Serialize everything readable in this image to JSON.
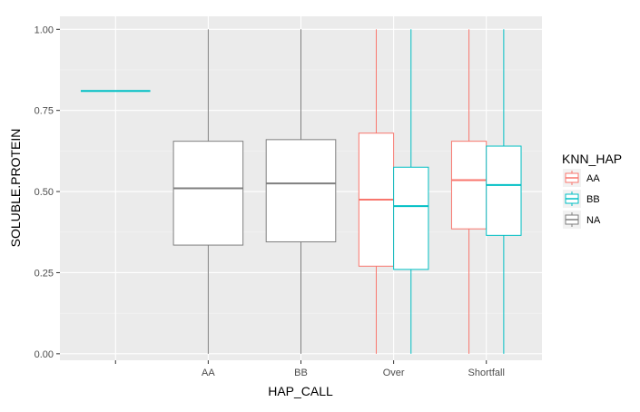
{
  "chart_data": {
    "type": "boxplot",
    "xlabel": "HAP_CALL",
    "ylabel": "SOLUBLE.PROTEIN",
    "categories": [
      "",
      "AA",
      "BB",
      "Over",
      "Shortfall"
    ],
    "ylim": [
      -0.02,
      1.04
    ],
    "yticks": [
      "0.00",
      "0.25",
      "0.50",
      "0.75",
      "1.00"
    ],
    "ytick_values": [
      0,
      0.25,
      0.5,
      0.75,
      1.0
    ],
    "grid": true,
    "legend": {
      "title": "KNN_HAP",
      "position": "right",
      "entries": [
        {
          "name": "AA",
          "color": "#F8766D"
        },
        {
          "name": "BB",
          "color": "#00BFC4"
        },
        {
          "name": "NA",
          "color": "#7F7F7F"
        }
      ]
    },
    "boxes": [
      {
        "category": "",
        "group": "BB",
        "color": "#00BFC4",
        "min": 0.81,
        "q1": 0.81,
        "median": 0.81,
        "q3": 0.81,
        "max": 0.81,
        "offset": 0,
        "width": 0.75
      },
      {
        "category": "AA",
        "group": "NA",
        "color": "#7F7F7F",
        "min": 0.0,
        "q1": 0.335,
        "median": 0.51,
        "q3": 0.655,
        "max": 1.0,
        "offset": 0,
        "width": 0.75
      },
      {
        "category": "BB",
        "group": "NA",
        "color": "#7F7F7F",
        "min": 0.0,
        "q1": 0.345,
        "median": 0.525,
        "q3": 0.66,
        "max": 1.0,
        "offset": 0,
        "width": 0.75
      },
      {
        "category": "Over",
        "group": "AA",
        "color": "#F8766D",
        "min": 0.0,
        "q1": 0.27,
        "median": 0.475,
        "q3": 0.68,
        "max": 1.0,
        "offset": -0.1875,
        "width": 0.375
      },
      {
        "category": "Over",
        "group": "BB",
        "color": "#00BFC4",
        "min": 0.0,
        "q1": 0.26,
        "median": 0.455,
        "q3": 0.575,
        "max": 1.0,
        "offset": 0.1875,
        "width": 0.375
      },
      {
        "category": "Shortfall",
        "group": "AA",
        "color": "#F8766D",
        "min": 0.0,
        "q1": 0.385,
        "median": 0.535,
        "q3": 0.655,
        "max": 1.0,
        "offset": -0.1875,
        "width": 0.375
      },
      {
        "category": "Shortfall",
        "group": "BB",
        "color": "#00BFC4",
        "min": 0.0,
        "q1": 0.365,
        "median": 0.52,
        "q3": 0.64,
        "max": 1.0,
        "offset": 0.1875,
        "width": 0.375
      }
    ]
  }
}
